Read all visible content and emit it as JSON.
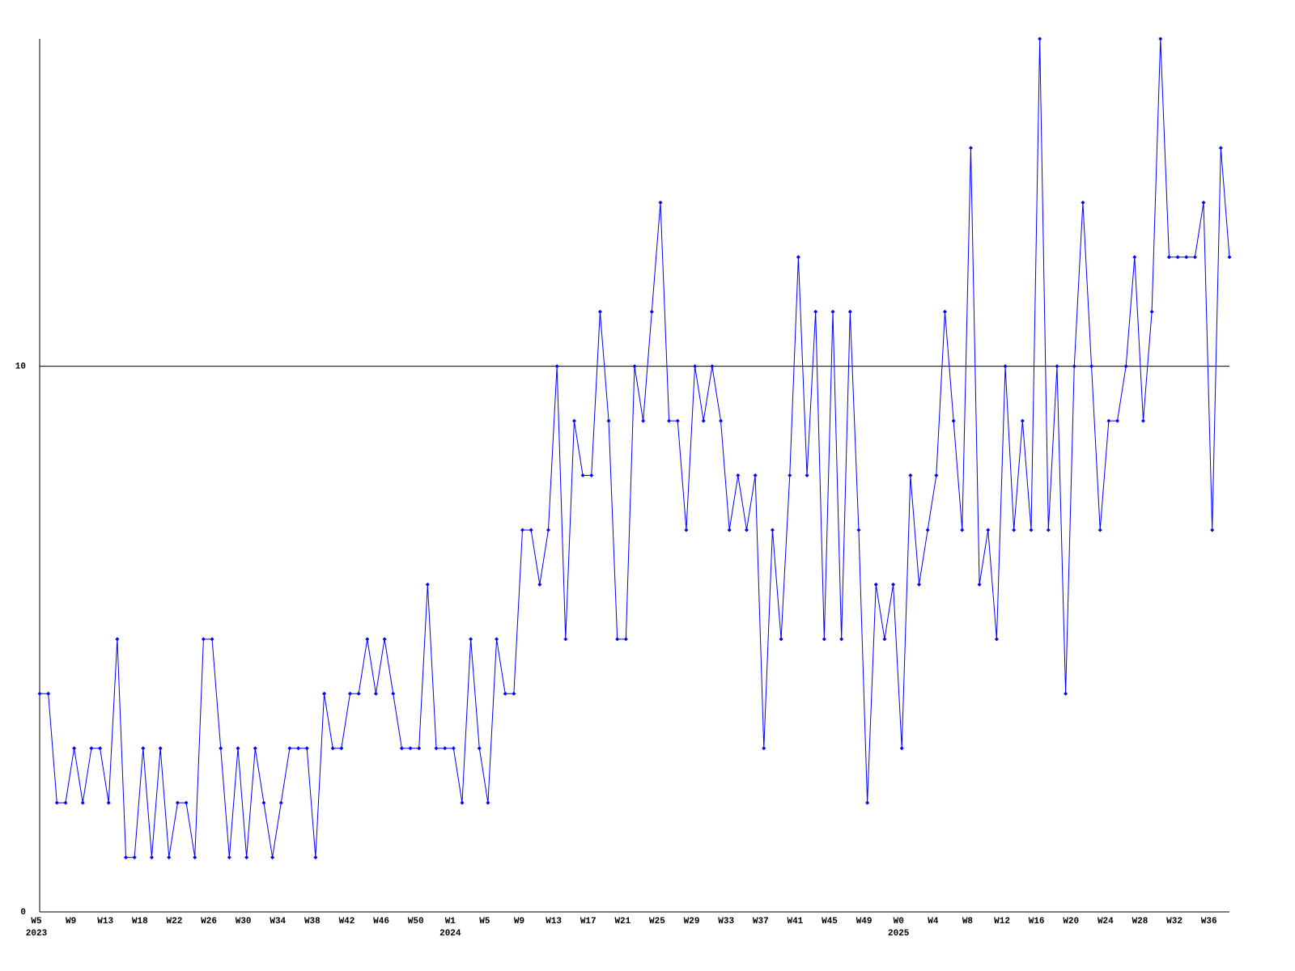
{
  "chart_data": {
    "type": "line",
    "categories": [
      "W5",
      null,
      null,
      null,
      "W9",
      null,
      null,
      null,
      "W13",
      null,
      null,
      null,
      "W18",
      null,
      null,
      null,
      "W22",
      null,
      null,
      null,
      "W26",
      null,
      null,
      null,
      "W30",
      null,
      null,
      null,
      "W34",
      null,
      null,
      null,
      "W38",
      null,
      null,
      null,
      "W42",
      null,
      null,
      null,
      "W46",
      null,
      null,
      null,
      "W50",
      null,
      null,
      null,
      "W1",
      null,
      null,
      null,
      "W5",
      null,
      null,
      null,
      "W9",
      null,
      null,
      null,
      "W13",
      null,
      null,
      null,
      "W17",
      null,
      null,
      null,
      "W21",
      null,
      null,
      null,
      "W25",
      null,
      null,
      null,
      "W29",
      null,
      null,
      null,
      "W33",
      null,
      null,
      null,
      "W37",
      null,
      null,
      null,
      "W41",
      null,
      null,
      null,
      "W45",
      null,
      null,
      null,
      "W49",
      null,
      null,
      null,
      "W0",
      null,
      null,
      null,
      "W4",
      null,
      null,
      null,
      "W8",
      null,
      null,
      null,
      "W12",
      null,
      null,
      null,
      "W16",
      null,
      null,
      null,
      "W20",
      null,
      null,
      null,
      "W24",
      null,
      null,
      null,
      "W28",
      null,
      null,
      null,
      "W32",
      null,
      null,
      null,
      "W36",
      null,
      null
    ],
    "category_years": [
      "2023",
      null,
      null,
      null,
      null,
      null,
      null,
      null,
      null,
      null,
      null,
      null,
      null,
      null,
      null,
      null,
      null,
      null,
      null,
      null,
      null,
      null,
      null,
      null,
      null,
      null,
      null,
      null,
      null,
      null,
      null,
      null,
      null,
      null,
      null,
      null,
      null,
      null,
      null,
      null,
      null,
      null,
      null,
      null,
      null,
      null,
      null,
      null,
      "2024",
      null,
      null,
      null,
      null,
      null,
      null,
      null,
      null,
      null,
      null,
      null,
      null,
      null,
      null,
      null,
      null,
      null,
      null,
      null,
      null,
      null,
      null,
      null,
      null,
      null,
      null,
      null,
      null,
      null,
      null,
      null,
      null,
      null,
      null,
      null,
      null,
      null,
      null,
      null,
      null,
      null,
      null,
      null,
      null,
      null,
      null,
      null,
      null,
      null,
      null,
      null,
      "2025",
      null,
      null,
      null,
      null,
      null,
      null,
      null,
      null,
      null,
      null,
      null,
      null,
      null,
      null,
      null,
      null,
      null,
      null,
      null,
      null,
      null,
      null,
      null,
      null,
      null,
      null,
      null,
      null,
      null,
      null,
      null,
      null,
      null,
      null,
      null,
      null,
      null,
      null
    ],
    "series": [
      {
        "color": "#0000ff",
        "values": [
          4,
          4,
          2,
          2,
          3,
          2,
          3,
          3,
          2,
          5,
          1,
          1,
          3,
          1,
          3,
          1,
          2,
          2,
          1,
          5,
          5,
          3,
          1,
          3,
          1,
          3,
          2,
          1,
          2,
          3,
          3,
          3,
          1,
          4,
          3,
          3,
          4,
          4,
          5,
          4,
          5,
          4,
          3,
          3,
          3,
          6,
          3,
          3,
          3,
          2,
          5,
          3,
          2,
          5,
          4,
          4,
          7,
          7,
          6,
          7,
          10,
          5,
          9,
          8,
          8,
          11,
          9,
          5,
          5,
          10,
          9,
          11,
          13,
          9,
          9,
          7,
          10,
          9,
          10,
          9,
          7,
          8,
          7,
          8,
          3,
          7,
          5,
          8,
          12,
          8,
          11,
          5,
          11,
          5,
          11,
          7,
          2,
          6,
          5,
          6,
          3,
          8,
          6,
          7,
          8,
          11,
          9,
          7,
          14,
          6,
          7,
          5,
          10,
          7,
          9,
          7,
          16,
          7,
          10,
          4,
          10,
          13,
          10,
          7,
          9,
          9,
          10,
          12,
          9,
          11,
          16,
          12,
          12,
          12,
          12,
          13,
          7,
          14,
          12
        ]
      }
    ],
    "ylim": [
      0,
      16
    ],
    "yticks": [
      0,
      10
    ],
    "grid": true
  }
}
